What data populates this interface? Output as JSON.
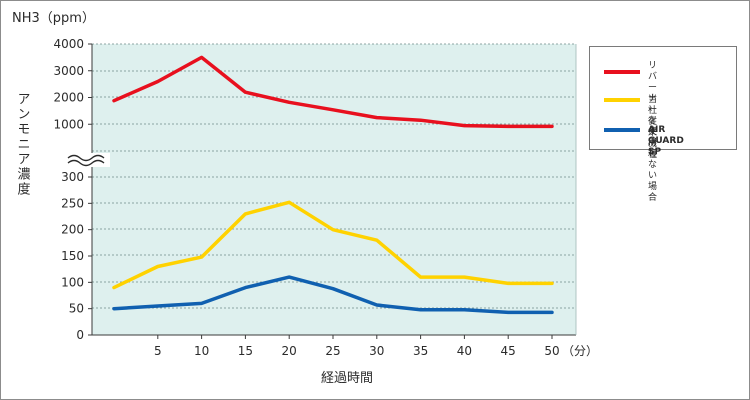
{
  "chart_data": {
    "type": "line",
    "unit_label": "NH3（ppm）",
    "ylabel": "アンモニア濃度",
    "xlabel": "経過時間",
    "x_unit": "（分）",
    "x": [
      0,
      5,
      10,
      15,
      20,
      25,
      30,
      35,
      40,
      45,
      50
    ],
    "x_ticks": [
      "5",
      "10",
      "15",
      "20",
      "25",
      "30",
      "35",
      "40",
      "45",
      "50"
    ],
    "y_ticks_upper": [
      "4000",
      "3000",
      "2000",
      "1000"
    ],
    "y_ticks_lower": [
      "300",
      "250",
      "200",
      "150",
      "100",
      "50",
      "0"
    ],
    "axis_break": true,
    "ylim_upper": [
      0,
      4000
    ],
    "ylim_lower": [
      0,
      300
    ],
    "grid": true,
    "legend_position": "right",
    "series": [
      {
        "name": "リバーナーを\n使用しない場合",
        "color": "#e8101e",
        "panel": "upper",
        "values": [
          1880,
          2600,
          3500,
          2200,
          1820,
          1540,
          1250,
          1150,
          950,
          920,
          920
        ]
      },
      {
        "name": "当社従来機種",
        "color": "#ffd200",
        "panel": "lower",
        "values": [
          90,
          130,
          148,
          230,
          252,
          200,
          180,
          110,
          110,
          98,
          98
        ]
      },
      {
        "name": "AIR GUARD SP",
        "color": "#1060b0",
        "panel": "lower",
        "values": [
          50,
          55,
          60,
          90,
          110,
          88,
          57,
          48,
          48,
          43,
          43
        ]
      }
    ]
  }
}
